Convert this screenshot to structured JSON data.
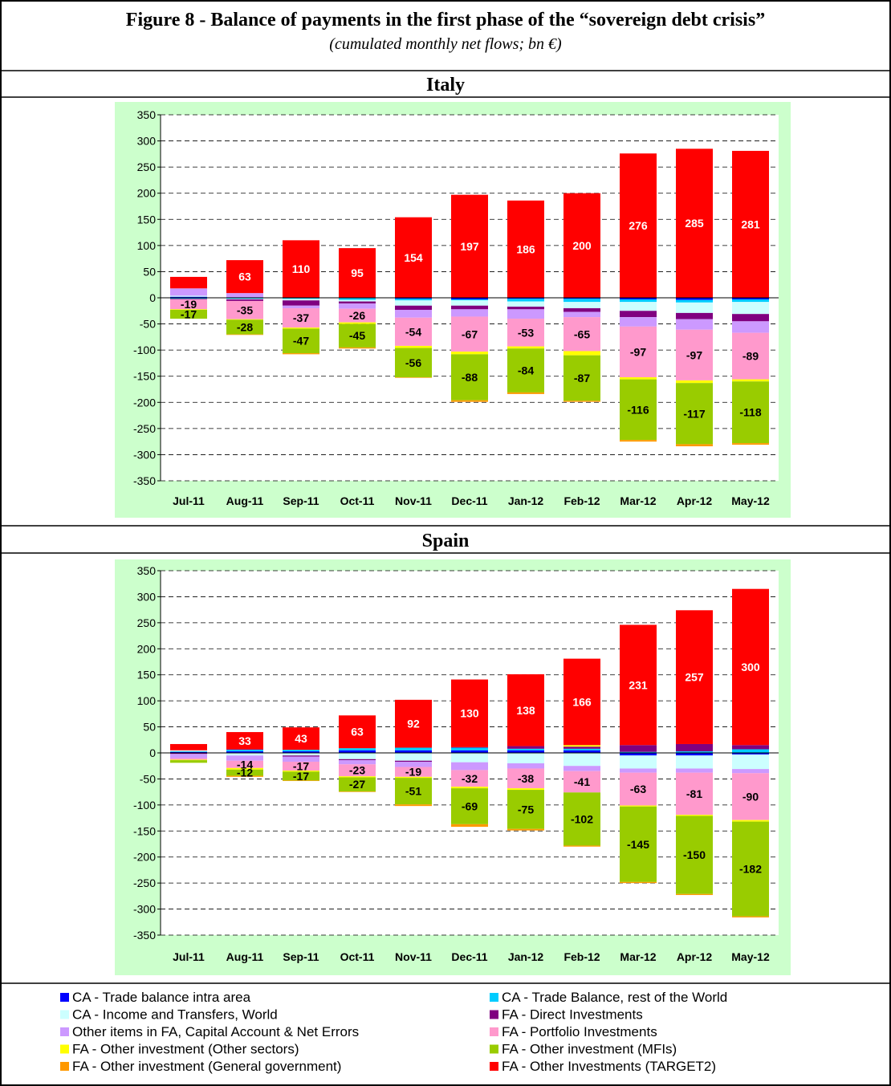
{
  "title": "Figure 8 - Balance of payments in the first phase of the “sovereign debt crisis”",
  "subtitle": "(cumulated monthly net flows; bn €)",
  "chart_data": [
    {
      "type": "bar",
      "stacked": true,
      "title": "Italy",
      "grid": true,
      "categories": [
        "Jul-11",
        "Aug-11",
        "Sep-11",
        "Oct-11",
        "Nov-11",
        "Dec-11",
        "Jan-12",
        "Feb-12",
        "Mar-12",
        "Apr-12",
        "May-12"
      ],
      "ylim": [
        -350,
        350
      ],
      "yticks": [
        -350,
        -300,
        -250,
        -200,
        -150,
        -100,
        -50,
        0,
        50,
        100,
        150,
        200,
        250,
        300,
        350
      ],
      "series": [
        {
          "name": "CA - Trade balance intra area",
          "color": "#0000ff",
          "values": [
            2,
            1,
            0,
            -1,
            -2,
            -3,
            -2,
            -2,
            -3,
            -4,
            -3
          ]
        },
        {
          "name": "CA - Trade Balance, rest of the World",
          "color": "#00ccff",
          "values": [
            -2,
            -2,
            -2,
            -3,
            -3,
            -2,
            -5,
            -6,
            -5,
            -5,
            -5
          ]
        },
        {
          "name": "CA - Income and Transfers, World",
          "color": "#ccffff",
          "values": [
            2,
            -1,
            -3,
            -3,
            -10,
            -10,
            -10,
            -12,
            -17,
            -20,
            -23
          ]
        },
        {
          "name": "FA - Direct Investments",
          "color": "#800080",
          "values": [
            -1,
            -3,
            -10,
            -4,
            -8,
            -7,
            -5,
            -7,
            -12,
            -12,
            -14
          ]
        },
        {
          "name": "Other items in FA, Capital Account & Net Errors",
          "color": "#cc99ff",
          "values": [
            14,
            8,
            -5,
            -10,
            -15,
            -14,
            -18,
            -10,
            -18,
            -20,
            -22
          ]
        },
        {
          "name": "FA -  Portfolio Investments",
          "color": "#ff99cc",
          "values": [
            -19,
            -35,
            -37,
            -26,
            -54,
            -67,
            -53,
            -65,
            -97,
            -97,
            -89
          ],
          "value_labels": [
            "-19",
            "-35",
            "-37",
            "-26",
            "-54",
            "-67",
            "-53",
            "-65",
            "-97",
            "-97",
            "-89"
          ]
        },
        {
          "name": "FA - Other investment (Other sectors)",
          "color": "#ffff00",
          "values": [
            -1,
            -1,
            -2,
            -3,
            -4,
            -5,
            -4,
            -8,
            -4,
            -5,
            -4
          ]
        },
        {
          "name": "FA - Other investment (MFIs)",
          "color": "#99cc00",
          "values": [
            -17,
            -28,
            -47,
            -45,
            -56,
            -88,
            -84,
            -87,
            -116,
            -117,
            -118
          ],
          "value_labels": [
            "-17",
            "-28",
            "-47",
            "-45",
            "-56",
            "-88",
            "-84",
            "-87",
            "-116",
            "-117",
            "-118"
          ]
        },
        {
          "name": "FA - Other investment (General government)",
          "color": "#ff9900",
          "values": [
            0,
            -1,
            -2,
            -2,
            -1,
            -3,
            -3,
            -2,
            -3,
            -4,
            -3
          ]
        },
        {
          "name": "FA - Other Investments (TARGET2)",
          "color": "#ff0000",
          "values": [
            22,
            63,
            110,
            95,
            154,
            197,
            186,
            200,
            276,
            285,
            281
          ],
          "value_labels": [
            null,
            "63",
            "110",
            "95",
            "154",
            "197",
            "186",
            "200",
            "276",
            "285",
            "281"
          ]
        }
      ]
    },
    {
      "type": "bar",
      "stacked": true,
      "title": "Spain",
      "grid": true,
      "categories": [
        "Jul-11",
        "Aug-11",
        "Sep-11",
        "Oct-11",
        "Nov-11",
        "Dec-11",
        "Jan-12",
        "Feb-12",
        "Mar-12",
        "Apr-12",
        "May-12"
      ],
      "ylim": [
        -350,
        350
      ],
      "yticks": [
        -350,
        -300,
        -250,
        -200,
        -150,
        -100,
        -50,
        0,
        50,
        100,
        150,
        200,
        250,
        300,
        350
      ],
      "series": [
        {
          "color": "#0000ff",
          "values": [
            2,
            3,
            3,
            5,
            5,
            5,
            5,
            5,
            -5,
            -5,
            -3
          ]
        },
        {
          "color": "#00ccff",
          "values": [
            1,
            3,
            3,
            4,
            5,
            5,
            3,
            3,
            2,
            3,
            7
          ]
        },
        {
          "color": "#ccffff",
          "values": [
            2,
            -5,
            -5,
            -12,
            -15,
            -18,
            -20,
            -25,
            -25,
            -25,
            -28
          ]
        },
        {
          "color": "#800080",
          "values": [
            -2,
            1,
            -2,
            -2,
            -2,
            1,
            5,
            4,
            13,
            14,
            8
          ]
        },
        {
          "color": "#cc99ff",
          "values": [
            -8,
            -10,
            -10,
            -8,
            -10,
            -15,
            -10,
            -10,
            -8,
            -8,
            -8
          ]
        },
        {
          "color": "#ff99cc",
          "values": [
            -3,
            -14,
            -17,
            -23,
            -19,
            -32,
            -38,
            -41,
            -63,
            -81,
            -90
          ],
          "value_labels": [
            null,
            "-14",
            "-17",
            "-23",
            "-19",
            "-32",
            "-38",
            "-41",
            "-63",
            "-81",
            "-90"
          ]
        },
        {
          "color": "#ffff00",
          "values": [
            -1,
            -3,
            -2,
            -2,
            -2,
            -3,
            -3,
            3,
            -2,
            -2,
            -3
          ]
        },
        {
          "color": "#99cc00",
          "values": [
            -5,
            -12,
            -17,
            -27,
            -51,
            -69,
            -75,
            -102,
            -145,
            -150,
            -182
          ],
          "value_labels": [
            null,
            "-12",
            "-17",
            "-27",
            "-51",
            "-69",
            "-75",
            "-102",
            "-145",
            "-150",
            "-182"
          ]
        },
        {
          "color": "#ff9900",
          "values": [
            0,
            -2,
            -1,
            -1,
            -3,
            -5,
            -3,
            -2,
            -2,
            -2,
            -2
          ]
        },
        {
          "color": "#ff0000",
          "values": [
            12,
            33,
            43,
            63,
            92,
            130,
            138,
            166,
            231,
            257,
            300
          ],
          "value_labels": [
            null,
            "33",
            "43",
            "63",
            "92",
            "130",
            "138",
            "166",
            "231",
            "257",
            "300"
          ]
        }
      ]
    }
  ]
}
